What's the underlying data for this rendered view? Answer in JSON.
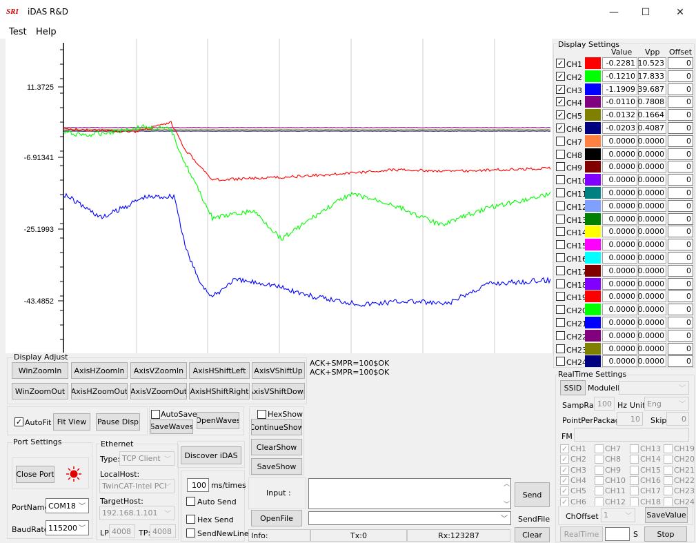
{
  "window": {
    "logo": "SRI",
    "title": "iDAS R&D",
    "minimize": "—",
    "maximize": "☐",
    "close": "✕"
  },
  "menu": [
    "Test",
    "Help"
  ],
  "colors": {
    "ch1": "#ff0000",
    "ch2": "#00ff00",
    "ch3": "#0000ff",
    "ch4": "#800080",
    "ch5": "#808000",
    "ch6": "#000080",
    "ch7": "#ff8040",
    "ch8": "#000000",
    "ch9": "#800000",
    "ch10": "#8000ff",
    "ch11": "#008080",
    "ch12": "#80a0ff",
    "ch13": "#008000",
    "ch14": "#ffff00",
    "ch15": "#ff00ff",
    "ch16": "#00ffff",
    "ch17": "#800000",
    "ch18": "#8000ff",
    "ch19": "#ff0000",
    "ch20": "#00ff00",
    "ch21": "#0000ff",
    "ch22": "#800080",
    "ch23": "#808000",
    "ch24": "#000080"
  },
  "plot": {
    "y_ticks": [
      "11.3725",
      "-6.91341",
      "-25.1993",
      "-43.4852"
    ]
  },
  "display_adjust": {
    "title": "Display Adjust",
    "row1": [
      "WinZoomIn",
      "AxisHZoomIn",
      "AxisVZoomIn",
      "AxisHShiftLeft",
      "AxisVShiftUp"
    ],
    "row2": [
      "WinZoomOut",
      "AxisHZoomOut",
      "AxisVZoomOut",
      "AxisHShiftRight",
      "AxisVShiftDown"
    ],
    "autofit": "AutoFit",
    "fit_view": "Fit View",
    "pause_disp": "Pause Disp",
    "autosave": "AutoSave",
    "save_waves": "SaveWaves",
    "open_waves": "OpenWaves",
    "hexshow": "HexShow",
    "continue_show": "ContinueShow",
    "clear_show": "ClearShow",
    "save_show": "SaveShow"
  },
  "port": {
    "title": "Port Settings",
    "close_port": "Close Port",
    "port_name_label": "PortName",
    "port_name": "COM18",
    "baud_label": "BaudRate",
    "baud": "115200"
  },
  "ethernet": {
    "title": "Ethernet",
    "type_label": "Type:",
    "type": "TCP Client",
    "local_label": "LocalHost:",
    "local": "TwinCAT-Intel PCI",
    "target_label": "TargetHost:",
    "target": "192.168.1.101",
    "lp_label": "LP:",
    "lp": "4008",
    "tp_label": "TP:",
    "tp": "4008",
    "discover": "Discover iDAS"
  },
  "send": {
    "interval": "100",
    "interval_unit": "ms/times",
    "auto_send": "Auto Send",
    "hex_send": "Hex Send",
    "send_newline": "SendNewLine",
    "input_label": "Input :",
    "send_btn": "Send",
    "open_file": "OpenFile",
    "send_file": "SendFile",
    "clear": "Clear"
  },
  "status": {
    "info": "Info:",
    "tx": "Tx:0",
    "rx": "Rx:123287"
  },
  "log": [
    "ACK+SMPR=100$OK",
    "ACK+SMPR=100$OK"
  ],
  "display_settings": {
    "title": "Display Settings",
    "headers": [
      "Value",
      "Vpp",
      "Offset"
    ],
    "channels": [
      {
        "name": "CH1",
        "checked": true,
        "value": "-0.2281",
        "vpp": "10.523",
        "offset": "0"
      },
      {
        "name": "CH2",
        "checked": true,
        "value": "-0.1210",
        "vpp": "17.833",
        "offset": "0"
      },
      {
        "name": "CH3",
        "checked": true,
        "value": "-1.1909",
        "vpp": "39.687",
        "offset": "0"
      },
      {
        "name": "CH4",
        "checked": true,
        "value": "-0.0110",
        "vpp": "0.7808",
        "offset": "0"
      },
      {
        "name": "CH5",
        "checked": true,
        "value": "-0.0132",
        "vpp": "0.1664",
        "offset": "0"
      },
      {
        "name": "CH6",
        "checked": true,
        "value": "-0.0203",
        "vpp": "0.4087",
        "offset": "0"
      },
      {
        "name": "CH7",
        "checked": false,
        "value": "0.0000",
        "vpp": "0.0000",
        "offset": "0"
      },
      {
        "name": "CH8",
        "checked": false,
        "value": "0.0000",
        "vpp": "0.0000",
        "offset": "0"
      },
      {
        "name": "CH9",
        "checked": false,
        "value": "0.0000",
        "vpp": "0.0000",
        "offset": "0"
      },
      {
        "name": "CH10",
        "checked": false,
        "value": "0.0000",
        "vpp": "0.0000",
        "offset": "0"
      },
      {
        "name": "CH11",
        "checked": false,
        "value": "0.0000",
        "vpp": "0.0000",
        "offset": "0"
      },
      {
        "name": "CH12",
        "checked": false,
        "value": "0.0000",
        "vpp": "0.0000",
        "offset": "0"
      },
      {
        "name": "CH13",
        "checked": false,
        "value": "0.0000",
        "vpp": "0.0000",
        "offset": "0"
      },
      {
        "name": "CH14",
        "checked": false,
        "value": "0.0000",
        "vpp": "0.0000",
        "offset": "0"
      },
      {
        "name": "CH15",
        "checked": false,
        "value": "0.0000",
        "vpp": "0.0000",
        "offset": "0"
      },
      {
        "name": "CH16",
        "checked": false,
        "value": "0.0000",
        "vpp": "0.0000",
        "offset": "0"
      },
      {
        "name": "CH17",
        "checked": false,
        "value": "0.0000",
        "vpp": "0.0000",
        "offset": "0"
      },
      {
        "name": "CH18",
        "checked": false,
        "value": "0.0000",
        "vpp": "0.0000",
        "offset": "0"
      },
      {
        "name": "CH19",
        "checked": false,
        "value": "0.0000",
        "vpp": "0.0000",
        "offset": "0"
      },
      {
        "name": "CH20",
        "checked": false,
        "value": "0.0000",
        "vpp": "0.0000",
        "offset": "0"
      },
      {
        "name": "CH21",
        "checked": false,
        "value": "0.0000",
        "vpp": "0.0000",
        "offset": "0"
      },
      {
        "name": "CH22",
        "checked": false,
        "value": "0.0000",
        "vpp": "0.0000",
        "offset": "0"
      },
      {
        "name": "CH23",
        "checked": false,
        "value": "0.0000",
        "vpp": "0.0000",
        "offset": "0"
      },
      {
        "name": "CH24",
        "checked": false,
        "value": "0.0000",
        "vpp": "0.0000",
        "offset": "0"
      }
    ]
  },
  "realtime": {
    "title": "RealTime Settings",
    "ssid": "SSID",
    "module_label": "ModuleID",
    "module": "",
    "samp_label": "SampRate",
    "samp": "100",
    "samp_unit": "Hz",
    "unit_label": "Unit",
    "unit": "Eng",
    "ppp_label": "PointPerPackage",
    "ppp": "10",
    "skip_label": "Skip",
    "skip": "0",
    "fm_label": "FM",
    "ch_cols": [
      [
        {
          "n": "CH1",
          "c": true
        },
        {
          "n": "CH2",
          "c": true
        },
        {
          "n": "CH3",
          "c": true
        },
        {
          "n": "CH4",
          "c": true
        },
        {
          "n": "CH5",
          "c": true
        },
        {
          "n": "CH6",
          "c": true
        }
      ],
      [
        {
          "n": "CH7",
          "c": false
        },
        {
          "n": "CH8",
          "c": false
        },
        {
          "n": "CH9",
          "c": false
        },
        {
          "n": "CH10",
          "c": false
        },
        {
          "n": "CH11",
          "c": false
        },
        {
          "n": "CH12",
          "c": false
        }
      ],
      [
        {
          "n": "CH13",
          "c": false
        },
        {
          "n": "CH14",
          "c": false
        },
        {
          "n": "CH15",
          "c": false
        },
        {
          "n": "CH16",
          "c": false
        },
        {
          "n": "CH17",
          "c": false
        },
        {
          "n": "CH18",
          "c": false
        }
      ],
      [
        {
          "n": "CH19",
          "c": false
        },
        {
          "n": "CH20",
          "c": false
        },
        {
          "n": "CH21",
          "c": false
        },
        {
          "n": "CH22",
          "c": false
        },
        {
          "n": "CH23",
          "c": false
        },
        {
          "n": "CH24",
          "c": false
        }
      ]
    ],
    "choffset_label": "ChOffset",
    "choffset": "1",
    "save_value": "SaveValue",
    "realtime_btn": "RealTime",
    "s_label": "S",
    "stop": "Stop"
  }
}
